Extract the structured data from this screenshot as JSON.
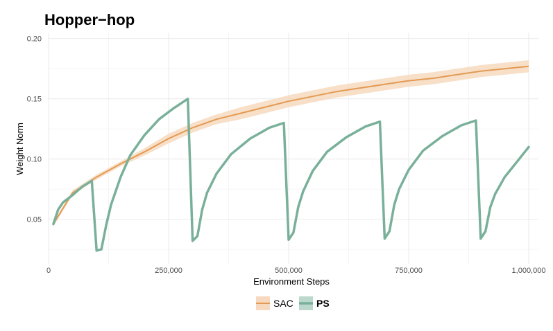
{
  "chart_data": {
    "type": "line",
    "title": "Hopper−hop",
    "xlabel": "Environment Steps",
    "ylabel": "Weight Norm",
    "xlim": [
      0,
      1000000
    ],
    "ylim": [
      0.013,
      0.205
    ],
    "x_ticks": [
      0,
      250000,
      500000,
      750000,
      1000000
    ],
    "x_tick_labels": [
      "0",
      "250,000",
      "500,000",
      "750,000",
      "1,000,000"
    ],
    "y_ticks": [
      0.05,
      0.1,
      0.15,
      0.2
    ],
    "y_tick_labels": [
      "0.05",
      "0.10",
      "0.15",
      "0.20"
    ],
    "grid": true,
    "legend_position": "bottom",
    "series": [
      {
        "name": "SAC",
        "color": "#E39A53",
        "band_color": "#F6D9BE",
        "x": [
          10000,
          50000,
          100000,
          150000,
          200000,
          250000,
          300000,
          350000,
          400000,
          450000,
          500000,
          550000,
          600000,
          650000,
          700000,
          750000,
          800000,
          850000,
          900000,
          950000,
          1000000
        ],
        "y": [
          0.046,
          0.072,
          0.085,
          0.096,
          0.106,
          0.117,
          0.126,
          0.133,
          0.138,
          0.143,
          0.148,
          0.152,
          0.156,
          0.159,
          0.162,
          0.165,
          0.167,
          0.17,
          0.173,
          0.175,
          0.177
        ],
        "lower": [
          0.044,
          0.07,
          0.083,
          0.094,
          0.103,
          0.113,
          0.122,
          0.129,
          0.133,
          0.138,
          0.143,
          0.147,
          0.151,
          0.154,
          0.157,
          0.16,
          0.162,
          0.165,
          0.168,
          0.17,
          0.172
        ],
        "upper": [
          0.048,
          0.074,
          0.087,
          0.098,
          0.109,
          0.121,
          0.13,
          0.137,
          0.143,
          0.148,
          0.153,
          0.157,
          0.161,
          0.164,
          0.167,
          0.17,
          0.172,
          0.175,
          0.178,
          0.18,
          0.182
        ]
      },
      {
        "name": "PS",
        "color": "#79B09A",
        "x": [
          10000,
          20000,
          30000,
          50000,
          70000,
          90000,
          100000,
          110000,
          120000,
          130000,
          150000,
          170000,
          200000,
          230000,
          260000,
          290000,
          300000,
          310000,
          320000,
          330000,
          350000,
          380000,
          420000,
          460000,
          490000,
          500000,
          510000,
          520000,
          530000,
          550000,
          580000,
          620000,
          660000,
          690000,
          700000,
          710000,
          720000,
          730000,
          750000,
          780000,
          820000,
          860000,
          890000,
          900000,
          910000,
          920000,
          930000,
          950000,
          980000,
          1000000
        ],
        "y": [
          0.046,
          0.058,
          0.064,
          0.07,
          0.077,
          0.082,
          0.024,
          0.025,
          0.045,
          0.062,
          0.085,
          0.103,
          0.12,
          0.133,
          0.142,
          0.15,
          0.032,
          0.036,
          0.058,
          0.072,
          0.088,
          0.104,
          0.117,
          0.126,
          0.13,
          0.033,
          0.039,
          0.06,
          0.073,
          0.09,
          0.106,
          0.118,
          0.127,
          0.131,
          0.034,
          0.04,
          0.062,
          0.075,
          0.091,
          0.107,
          0.119,
          0.128,
          0.132,
          0.034,
          0.04,
          0.06,
          0.071,
          0.085,
          0.1,
          0.11
        ]
      }
    ]
  }
}
